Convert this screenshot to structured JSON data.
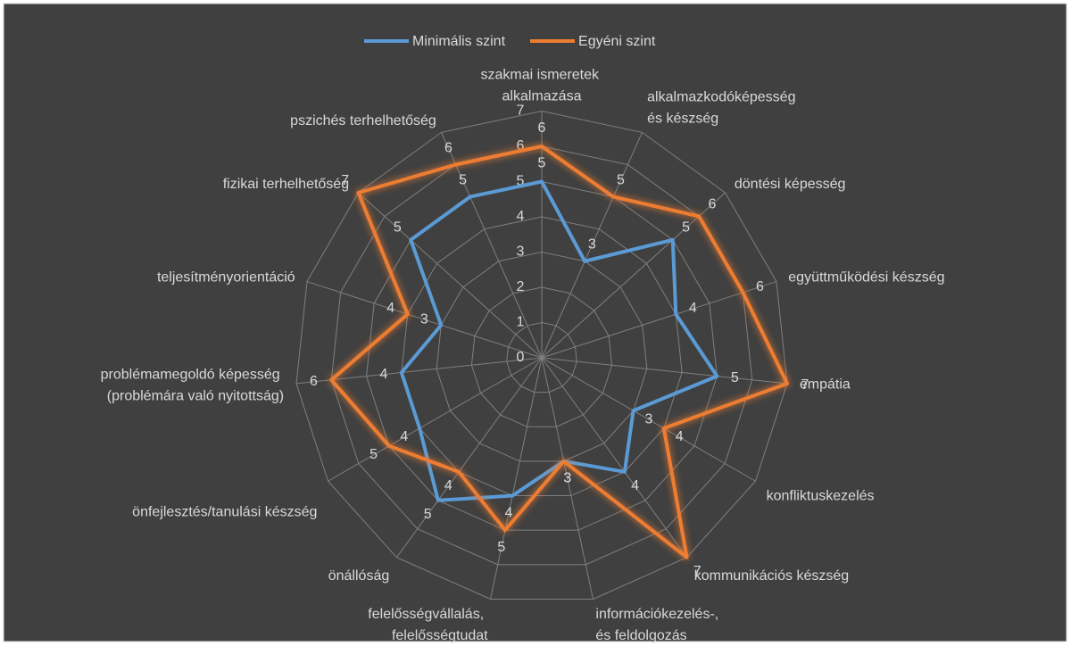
{
  "chart_data": {
    "type": "radar",
    "categories": [
      "szakmai ismeretek alkalmazása",
      "alkalmazkodóképesség és készség",
      "döntési képesség",
      "együttműködési készség",
      "empátia",
      "konfliktuskezelés",
      "kommunikációs készség",
      "információkezelés-, és feldolgozás",
      "felelősségvállalás, felelősségtudat",
      "önállóság",
      "önfejlesztés/tanulási készség",
      "problémamegoldó képesség (problémára való nyitottság)",
      "teljesítményorientáció",
      "fizikai terhelhetőség",
      "pszichés terhelhetőség"
    ],
    "series": [
      {
        "name": "Minimális szint",
        "color": "#5b9bd5",
        "values": [
          5,
          3,
          5,
          4,
          5,
          3,
          4,
          3,
          4,
          5,
          4,
          4,
          3,
          5,
          5
        ]
      },
      {
        "name": "Egyéni szint",
        "color": "#ed7d31",
        "values": [
          6,
          5,
          6,
          6,
          7,
          4,
          7,
          3,
          5,
          4,
          5,
          6,
          4,
          7,
          6
        ]
      }
    ],
    "ylim": [
      0,
      7
    ],
    "yticks": [
      0,
      1,
      2,
      3,
      4,
      5,
      6,
      7
    ],
    "grid": true,
    "legend": "top"
  }
}
